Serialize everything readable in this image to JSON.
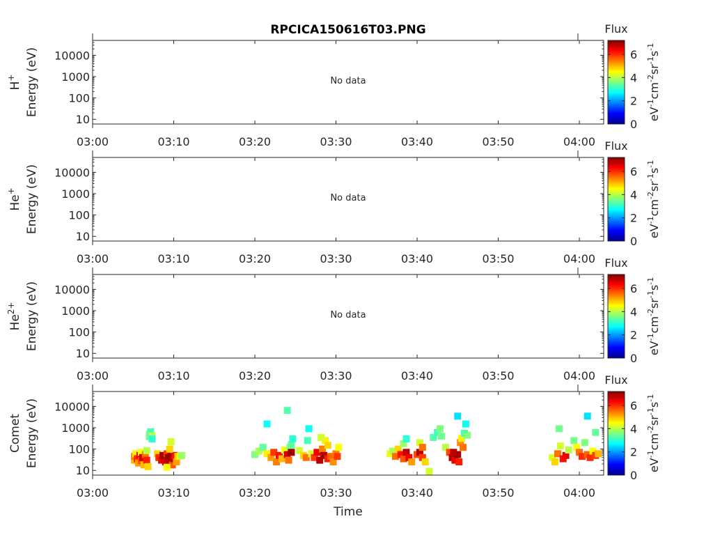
{
  "title": "RPCICA150616T03.PNG",
  "xlabel": "Time",
  "colorbar": {
    "title": "Flux",
    "ticks": [
      "0",
      "2",
      "4",
      "6"
    ],
    "range": [
      0,
      7.2
    ]
  },
  "chart_data": [
    {
      "type": "heatmap",
      "species": "H",
      "species_sup": "+",
      "ylabel": "Energy (eV)",
      "message": "No data",
      "x_ticks": [
        "03:00",
        "03:10",
        "03:20",
        "03:30",
        "03:40",
        "03:50",
        "04:00"
      ],
      "y_ticks": [
        "10",
        "100",
        "1000",
        "10000"
      ],
      "xlim": [
        "03:00",
        "04:03"
      ],
      "ylim": [
        6,
        50000
      ],
      "yscale": "log",
      "points": []
    },
    {
      "type": "heatmap",
      "species": "He",
      "species_sup": "+",
      "ylabel": "Energy (eV)",
      "message": "No data",
      "x_ticks": [
        "03:00",
        "03:10",
        "03:20",
        "03:30",
        "03:40",
        "03:50",
        "04:00"
      ],
      "y_ticks": [
        "10",
        "100",
        "1000",
        "10000"
      ],
      "xlim": [
        "03:00",
        "04:03"
      ],
      "ylim": [
        6,
        50000
      ],
      "yscale": "log",
      "points": []
    },
    {
      "type": "heatmap",
      "species": "He",
      "species_sup": "2+",
      "ylabel": "Energy (eV)",
      "message": "No data",
      "x_ticks": [
        "03:00",
        "03:10",
        "03:20",
        "03:30",
        "03:40",
        "03:50",
        "04:00"
      ],
      "y_ticks": [
        "10",
        "100",
        "1000",
        "10000"
      ],
      "xlim": [
        "03:00",
        "04:03"
      ],
      "ylim": [
        6,
        50000
      ],
      "yscale": "log",
      "points": []
    },
    {
      "type": "heatmap",
      "species": "Comet",
      "species_sup": "",
      "ylabel": "Energy (eV)",
      "message": "",
      "x_ticks": [
        "03:00",
        "03:10",
        "03:20",
        "03:30",
        "03:40",
        "03:50",
        "04:00"
      ],
      "y_ticks": [
        "10",
        "100",
        "1000",
        "10000"
      ],
      "xlim": [
        "03:00",
        "04:03"
      ],
      "ylim": [
        6,
        50000
      ],
      "yscale": "log",
      "points": [
        [
          "03:05:10",
          30,
          5.0
        ],
        [
          "03:05:10",
          45,
          5.4
        ],
        [
          "03:05:20",
          60,
          4.6
        ],
        [
          "03:05:30",
          35,
          6.0
        ],
        [
          "03:05:40",
          22,
          5.2
        ],
        [
          "03:05:50",
          50,
          6.4
        ],
        [
          "03:06:00",
          28,
          5.7
        ],
        [
          "03:06:00",
          70,
          4.4
        ],
        [
          "03:06:10",
          40,
          6.6
        ],
        [
          "03:06:20",
          18,
          5.0
        ],
        [
          "03:06:30",
          55,
          5.5
        ],
        [
          "03:06:40",
          30,
          6.1
        ],
        [
          "03:06:50",
          15,
          4.8
        ],
        [
          "03:06:40",
          85,
          4.0
        ],
        [
          "03:07:00",
          500,
          3.8
        ],
        [
          "03:07:00",
          380,
          3.5
        ],
        [
          "03:07:10",
          650,
          3.2
        ],
        [
          "03:07:20",
          420,
          4.0
        ],
        [
          "03:07:20",
          300,
          3.0
        ],
        [
          "03:08:00",
          60,
          4.8
        ],
        [
          "03:08:10",
          40,
          6.0
        ],
        [
          "03:08:30",
          30,
          6.3
        ],
        [
          "03:08:40",
          50,
          6.9
        ],
        [
          "03:08:50",
          35,
          7.0
        ],
        [
          "03:09:00",
          25,
          6.6
        ],
        [
          "03:09:10",
          60,
          5.9
        ],
        [
          "03:09:20",
          40,
          7.0
        ],
        [
          "03:09:30",
          28,
          6.8
        ],
        [
          "03:09:40",
          45,
          7.0
        ],
        [
          "03:09:50",
          18,
          5.7
        ],
        [
          "03:10:00",
          35,
          6.7
        ],
        [
          "03:10:10",
          50,
          6.2
        ],
        [
          "03:10:20",
          25,
          5.2
        ],
        [
          "03:10:30",
          45,
          4.8
        ],
        [
          "03:09:30",
          100,
          4.8
        ],
        [
          "03:09:40",
          220,
          4.2
        ],
        [
          "03:10:50",
          48,
          4.4
        ],
        [
          "03:11:00",
          50,
          3.8
        ],
        [
          "03:09:10",
          14,
          4.5
        ],
        [
          "03:20:00",
          55,
          3.6
        ],
        [
          "03:20:30",
          80,
          3.9
        ],
        [
          "03:21:00",
          120,
          3.4
        ],
        [
          "03:21:30",
          60,
          4.6
        ],
        [
          "03:22:00",
          40,
          5.2
        ],
        [
          "03:22:20",
          70,
          5.9
        ],
        [
          "03:22:40",
          25,
          5.4
        ],
        [
          "03:23:00",
          50,
          6.2
        ],
        [
          "03:23:20",
          35,
          5.0
        ],
        [
          "03:23:40",
          90,
          4.4
        ],
        [
          "03:24:00",
          55,
          6.6
        ],
        [
          "03:24:10",
          30,
          5.5
        ],
        [
          "03:24:20",
          120,
          3.6
        ],
        [
          "03:24:30",
          160,
          3.4
        ],
        [
          "03:24:40",
          300,
          3.0
        ],
        [
          "03:24:30",
          70,
          7.0
        ],
        [
          "03:24:00",
          6500,
          3.3
        ],
        [
          "03:21:30",
          1500,
          2.8
        ],
        [
          "03:25:30",
          85,
          4.2
        ],
        [
          "03:26:00",
          50,
          4.8
        ],
        [
          "03:26:20",
          40,
          5.5
        ],
        [
          "03:26:30",
          250,
          3.2
        ],
        [
          "03:26:40",
          900,
          2.8
        ],
        [
          "03:27:00",
          60,
          4.2
        ],
        [
          "03:27:20",
          40,
          5.9
        ],
        [
          "03:27:40",
          70,
          6.4
        ],
        [
          "03:28:00",
          30,
          6.8
        ],
        [
          "03:28:20",
          100,
          5.4
        ],
        [
          "03:28:30",
          50,
          6.9
        ],
        [
          "03:28:40",
          250,
          4.6
        ],
        [
          "03:29:00",
          35,
          6.1
        ],
        [
          "03:29:20",
          45,
          5.6
        ],
        [
          "03:29:40",
          25,
          5.3
        ],
        [
          "03:30:00",
          60,
          5.4
        ],
        [
          "03:30:10",
          45,
          5.9
        ],
        [
          "03:30:20",
          120,
          4.5
        ],
        [
          "03:29:00",
          150,
          4.8
        ],
        [
          "03:28:10",
          350,
          4.2
        ],
        [
          "03:36:40",
          60,
          4.4
        ],
        [
          "03:37:00",
          80,
          3.9
        ],
        [
          "03:37:20",
          45,
          5.5
        ],
        [
          "03:37:40",
          100,
          4.8
        ],
        [
          "03:38:00",
          55,
          6.2
        ],
        [
          "03:38:20",
          35,
          5.7
        ],
        [
          "03:38:40",
          70,
          6.8
        ],
        [
          "03:38:20",
          180,
          3.8
        ],
        [
          "03:38:40",
          300,
          3.0
        ],
        [
          "03:39:00",
          40,
          6.4
        ],
        [
          "03:39:20",
          25,
          5.2
        ],
        [
          "03:40:00",
          55,
          5.8
        ],
        [
          "03:40:20",
          70,
          6.8
        ],
        [
          "03:40:40",
          40,
          5.9
        ],
        [
          "03:40:20",
          200,
          4.2
        ],
        [
          "03:40:40",
          120,
          5.5
        ],
        [
          "03:41:00",
          25,
          4.8
        ],
        [
          "03:41:30",
          9,
          4.2
        ],
        [
          "03:42:00",
          350,
          3.3
        ],
        [
          "03:42:30",
          600,
          3.1
        ],
        [
          "03:42:50",
          900,
          3.6
        ],
        [
          "03:43:00",
          400,
          3.5
        ],
        [
          "03:43:30",
          120,
          4.0
        ],
        [
          "03:44:00",
          70,
          5.8
        ],
        [
          "03:44:20",
          40,
          6.9
        ],
        [
          "03:44:40",
          30,
          6.4
        ],
        [
          "03:45:00",
          55,
          7.0
        ],
        [
          "03:45:10",
          25,
          6.1
        ],
        [
          "03:45:20",
          200,
          5.3
        ],
        [
          "03:45:30",
          320,
          4.6
        ],
        [
          "03:45:40",
          120,
          5.5
        ],
        [
          "03:45:50",
          550,
          3.2
        ],
        [
          "03:46:00",
          1500,
          2.8
        ],
        [
          "03:46:10",
          450,
          3.6
        ],
        [
          "03:45:00",
          3500,
          2.5
        ],
        [
          "03:44:30",
          70,
          6.8
        ],
        [
          "03:56:40",
          40,
          4.2
        ],
        [
          "03:57:00",
          25,
          4.8
        ],
        [
          "03:57:20",
          60,
          5.5
        ],
        [
          "03:57:30",
          900,
          3.5
        ],
        [
          "03:57:40",
          140,
          4.2
        ],
        [
          "03:58:00",
          35,
          6.2
        ],
        [
          "03:58:20",
          50,
          6.4
        ],
        [
          "03:58:40",
          90,
          4.0
        ],
        [
          "03:59:20",
          250,
          3.5
        ],
        [
          "03:59:40",
          120,
          4.5
        ],
        [
          "04:00:00",
          70,
          5.5
        ],
        [
          "04:00:20",
          45,
          6.0
        ],
        [
          "04:00:40",
          200,
          3.6
        ],
        [
          "04:01:00",
          55,
          5.6
        ],
        [
          "04:01:20",
          40,
          6.0
        ],
        [
          "04:01:40",
          80,
          4.5
        ],
        [
          "04:02:00",
          50,
          5.9
        ],
        [
          "04:02:20",
          60,
          5.0
        ],
        [
          "04:01:00",
          3500,
          2.5
        ],
        [
          "04:02:00",
          600,
          3.4
        ]
      ]
    }
  ]
}
